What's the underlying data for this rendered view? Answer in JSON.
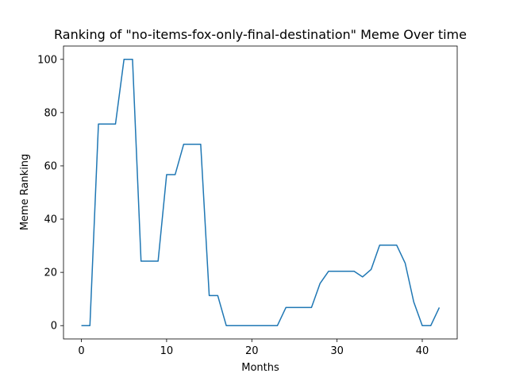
{
  "chart_data": {
    "type": "line",
    "title": "Ranking of \"no-items-fox-only-final-destination\" Meme Over time",
    "xlabel": "Months",
    "ylabel": "Meme Ranking",
    "xlim": [
      -2.1,
      44.1
    ],
    "ylim": [
      -5,
      105
    ],
    "xticks": [
      0,
      10,
      20,
      30,
      40
    ],
    "yticks": [
      0,
      20,
      40,
      60,
      80,
      100
    ],
    "grid": false,
    "series": [
      {
        "color": "#1f77b4",
        "x": [
          0,
          1,
          2,
          3,
          4,
          5,
          6,
          7,
          8,
          9,
          10,
          11,
          12,
          13,
          14,
          15,
          16,
          17,
          18,
          19,
          20,
          21,
          22,
          23,
          24,
          25,
          26,
          27,
          28,
          29,
          30,
          31,
          32,
          33,
          34,
          35,
          36,
          37,
          38,
          39,
          40,
          41,
          42
        ],
        "y": [
          0,
          0,
          75.7,
          75.7,
          75.7,
          100,
          100,
          24.2,
          24.2,
          24.2,
          56.7,
          56.7,
          68.1,
          68.1,
          68.1,
          11.3,
          11.3,
          0,
          0,
          0,
          0,
          0,
          0,
          0,
          6.8,
          6.8,
          6.8,
          6.8,
          15.8,
          20.4,
          20.4,
          20.4,
          20.4,
          18.3,
          21.1,
          30.2,
          30.2,
          30.2,
          23.4,
          8.9,
          0,
          0,
          6.8
        ]
      }
    ]
  }
}
